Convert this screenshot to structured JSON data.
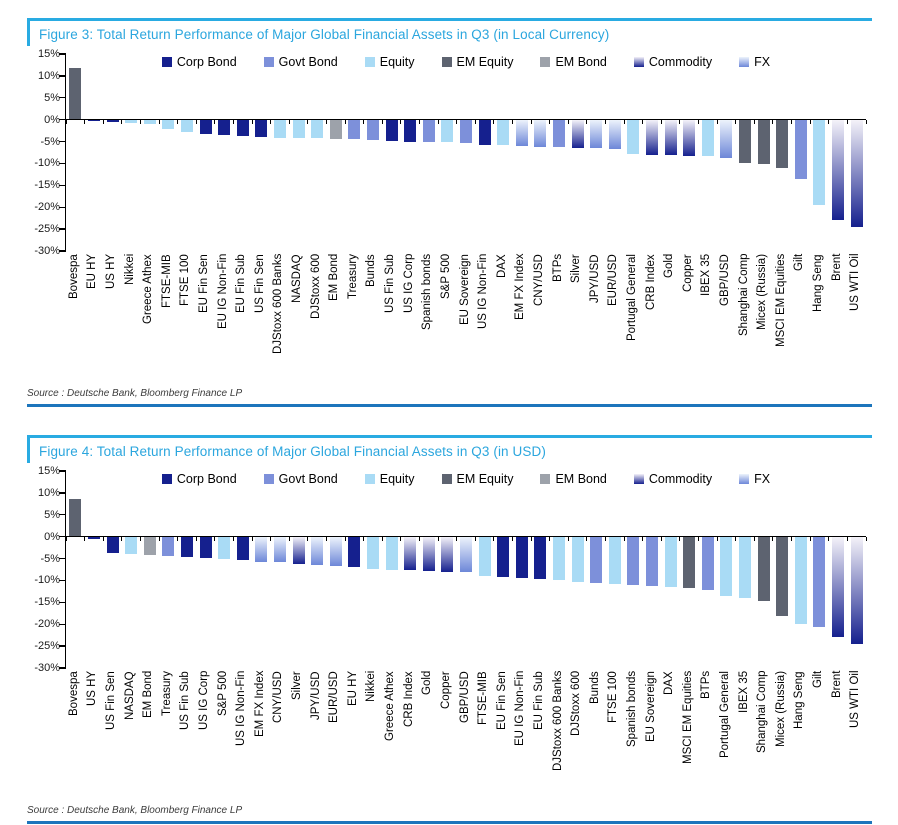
{
  "figures": [
    {
      "title": "Figure 3: Total Return Performance of Major Global Financial Assets in Q3 (in Local Currency)",
      "source": "Source : Deutsche Bank, Bloomberg Finance LP"
    },
    {
      "title": "Figure 4: Total Return Performance of Major Global Financial Assets in Q3 (in USD)",
      "source": "Source : Deutsche Bank, Bloomberg Finance LP"
    }
  ],
  "legend": [
    {
      "label": "Corp Bond",
      "class": "Corp Bond"
    },
    {
      "label": "Govt Bond",
      "class": "Govt Bond"
    },
    {
      "label": "Equity",
      "class": "Equity"
    },
    {
      "label": "EM Equity",
      "class": "EM Equity"
    },
    {
      "label": "EM Bond",
      "class": "EM Bond"
    },
    {
      "label": "Commodity",
      "class": "Commodity"
    },
    {
      "label": "FX",
      "class": "FX"
    }
  ],
  "colors": {
    "Corp Bond": "#15208e",
    "Govt Bond": "#7d90da",
    "Equity": "#a9dbf5",
    "EM Equity": "#5d6370",
    "EM Bond": "#9da2aa",
    "Commodity": "gradient:#f4f2f9,#15208e",
    "FX": "gradient:#edf3fc,#6d87d8",
    "accent_cyan": "#29abe2",
    "title_text": "#2ba6de",
    "bottom_rule": "#1c75bc",
    "axis": "#000000"
  },
  "chart_data": [
    {
      "type": "bar",
      "title": "Total Return Performance of Major Global Financial Assets in Q3 (in Local Currency)",
      "xlabel": "",
      "ylabel": "",
      "ylim": [
        -30,
        15
      ],
      "y_tick_step": 5,
      "y_tick_labels": [
        "15%",
        "10%",
        "5%",
        "0%",
        "-5%",
        "-10%",
        "-15%",
        "-20%",
        "-25%",
        "-30%"
      ],
      "grid": false,
      "legend_position": "top-center",
      "categories": [
        "Bovespa",
        "EU HY",
        "US HY",
        "Nikkei",
        "Greece Athex",
        "FTSE-MIB",
        "FTSE 100",
        "EU Fin Sen",
        "EU IG Non-Fin",
        "EU Fin Sub",
        "US Fin Sen",
        "DJStoxx 600 Banks",
        "NASDAQ",
        "DJStoxx 600",
        "EM Bond",
        "Treasury",
        "Bunds",
        "US Fin Sub",
        "US IG Corp",
        "Spanish bonds",
        "S&P 500",
        "EU Sovereign",
        "US IG Non-Fin",
        "DAX",
        "EM FX Index",
        "CNY/USD",
        "BTPs",
        "Silver",
        "JPY/USD",
        "EUR/USD",
        "Portugal General",
        "CRB Index",
        "Gold",
        "Copper",
        "IBEX 35",
        "GBP/USD",
        "Shanghai Comp",
        "Micex (Russia)",
        "MSCI EM Equities",
        "Gilt",
        "Hang Seng",
        "Brent",
        "US WTI Oil"
      ],
      "values": [
        11.7,
        -0.3,
        -0.6,
        -0.8,
        -1.0,
        -2.1,
        -2.8,
        -3.3,
        -3.5,
        -3.8,
        -4.0,
        -4.1,
        -4.2,
        -4.3,
        -4.4,
        -4.5,
        -4.6,
        -4.8,
        -5.0,
        -5.0,
        -5.2,
        -5.4,
        -5.7,
        -5.9,
        -6.1,
        -6.2,
        -6.2,
        -6.4,
        -6.4,
        -6.6,
        -7.9,
        -8.0,
        -8.1,
        -8.2,
        -8.4,
        -8.7,
        -9.8,
        -10.2,
        -11.1,
        -13.6,
        -19.6,
        -23.0,
        -24.5
      ],
      "asset_classes": [
        "EM Equity",
        "Corp Bond",
        "Corp Bond",
        "Equity",
        "Equity",
        "Equity",
        "Equity",
        "Corp Bond",
        "Corp Bond",
        "Corp Bond",
        "Corp Bond",
        "Equity",
        "Equity",
        "Equity",
        "EM Bond",
        "Govt Bond",
        "Govt Bond",
        "Corp Bond",
        "Corp Bond",
        "Govt Bond",
        "Equity",
        "Govt Bond",
        "Corp Bond",
        "Equity",
        "FX",
        "FX",
        "Govt Bond",
        "Commodity",
        "FX",
        "FX",
        "Equity",
        "Commodity",
        "Commodity",
        "Commodity",
        "Equity",
        "FX",
        "EM Equity",
        "EM Equity",
        "EM Equity",
        "Govt Bond",
        "Equity",
        "Commodity",
        "Commodity"
      ]
    },
    {
      "type": "bar",
      "title": "Total Return Performance of Major Global Financial Assets in Q3 (in USD)",
      "xlabel": "",
      "ylabel": "",
      "ylim": [
        -30,
        15
      ],
      "y_tick_step": 5,
      "y_tick_labels": [
        "15%",
        "10%",
        "5%",
        "0%",
        "-5%",
        "-10%",
        "-15%",
        "-20%",
        "-25%",
        "-30%"
      ],
      "grid": false,
      "legend_position": "top-center",
      "categories": [
        "Bovespa",
        "US HY",
        "US Fin Sen",
        "NASDAQ",
        "EM Bond",
        "Treasury",
        "US Fin Sub",
        "US IG Corp",
        "S&P 500",
        "US IG Non-Fin",
        "EM FX Index",
        "CNY/USD",
        "Silver",
        "JPY/USD",
        "EUR/USD",
        "EU HY",
        "Nikkei",
        "Greece Athex",
        "CRB Index",
        "Gold",
        "Copper",
        "GBP/USD",
        "FTSE-MIB",
        "EU Fin Sen",
        "EU IG Non-Fin",
        "EU Fin Sub",
        "DJStoxx 600 Banks",
        "DJStoxx 600",
        "Bunds",
        "FTSE 100",
        "Spanish bonds",
        "EU Sovereign",
        "DAX",
        "MSCI EM Equities",
        "BTPs",
        "Portugal General",
        "IBEX 35",
        "Shanghai Comp",
        "Micex (Russia)",
        "Hang Seng",
        "Gilt",
        "Brent",
        "US WTI Oil"
      ],
      "values": [
        8.5,
        -0.5,
        -3.8,
        -4.0,
        -4.3,
        -4.5,
        -4.7,
        -4.9,
        -5.0,
        -5.3,
        -5.7,
        -5.9,
        -6.3,
        -6.5,
        -6.6,
        -7.0,
        -7.4,
        -7.6,
        -7.7,
        -7.9,
        -8.0,
        -8.1,
        -9.1,
        -9.3,
        -9.5,
        -9.7,
        -10.0,
        -10.4,
        -10.6,
        -10.8,
        -11.0,
        -11.2,
        -11.6,
        -11.7,
        -12.1,
        -13.6,
        -14.1,
        -14.6,
        -18.2,
        -19.9,
        -20.7,
        -23.0,
        -24.5
      ],
      "asset_classes": [
        "EM Equity",
        "Corp Bond",
        "Corp Bond",
        "Equity",
        "EM Bond",
        "Govt Bond",
        "Corp Bond",
        "Corp Bond",
        "Equity",
        "Corp Bond",
        "FX",
        "FX",
        "Commodity",
        "FX",
        "FX",
        "Corp Bond",
        "Equity",
        "Equity",
        "Commodity",
        "Commodity",
        "Commodity",
        "FX",
        "Equity",
        "Corp Bond",
        "Corp Bond",
        "Corp Bond",
        "Equity",
        "Equity",
        "Govt Bond",
        "Equity",
        "Govt Bond",
        "Govt Bond",
        "Equity",
        "EM Equity",
        "Govt Bond",
        "Equity",
        "Equity",
        "EM Equity",
        "EM Equity",
        "Equity",
        "Govt Bond",
        "Commodity",
        "Commodity"
      ]
    }
  ]
}
